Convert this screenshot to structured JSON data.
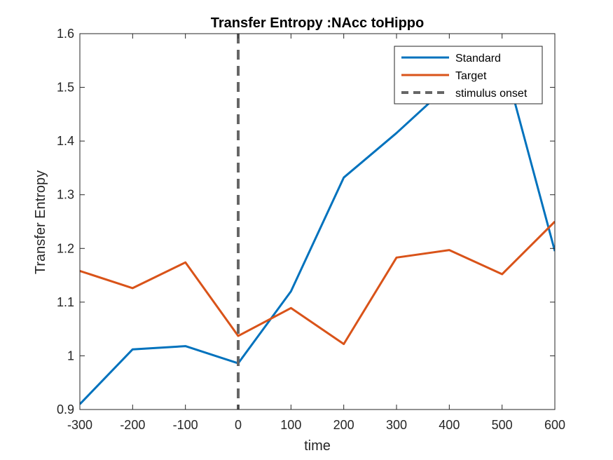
{
  "chart_data": {
    "type": "line",
    "title": "Transfer Entropy :NAcc toHippo",
    "xlabel": "time",
    "ylabel": "Transfer Entropy",
    "xlim": [
      -300,
      600
    ],
    "ylim": [
      0.9,
      1.6
    ],
    "xticks": [
      -300,
      -200,
      -100,
      0,
      100,
      200,
      300,
      400,
      500,
      600
    ],
    "xtick_labels": [
      "-300",
      "-200",
      "-100",
      "0",
      "100",
      "200",
      "300",
      "400",
      "500",
      "600"
    ],
    "yticks": [
      0.9,
      1.0,
      1.1,
      1.2,
      1.3,
      1.4,
      1.5,
      1.6
    ],
    "ytick_labels": [
      "0.9",
      "1",
      "1.1",
      "1.2",
      "1.3",
      "1.4",
      "1.5",
      "1.6"
    ],
    "x": [
      -300,
      -200,
      -100,
      0,
      100,
      200,
      300,
      400,
      500,
      600
    ],
    "series": [
      {
        "name": "Standard",
        "color": "#0072BD",
        "values": [
          0.91,
          1.012,
          1.018,
          0.986,
          1.12,
          1.332,
          1.415,
          1.505,
          1.56,
          1.195
        ]
      },
      {
        "name": "Target",
        "color": "#D95319",
        "values": [
          1.158,
          1.126,
          1.174,
          1.037,
          1.089,
          1.022,
          1.183,
          1.197,
          1.152,
          1.25
        ]
      }
    ],
    "reference_line": {
      "name": "stimulus onset",
      "x": 0,
      "color": "#666666",
      "style": "dashed"
    },
    "legend": {
      "position": "top-right",
      "entries": [
        "Standard",
        "Target",
        "stimulus onset"
      ]
    },
    "grid": false
  }
}
